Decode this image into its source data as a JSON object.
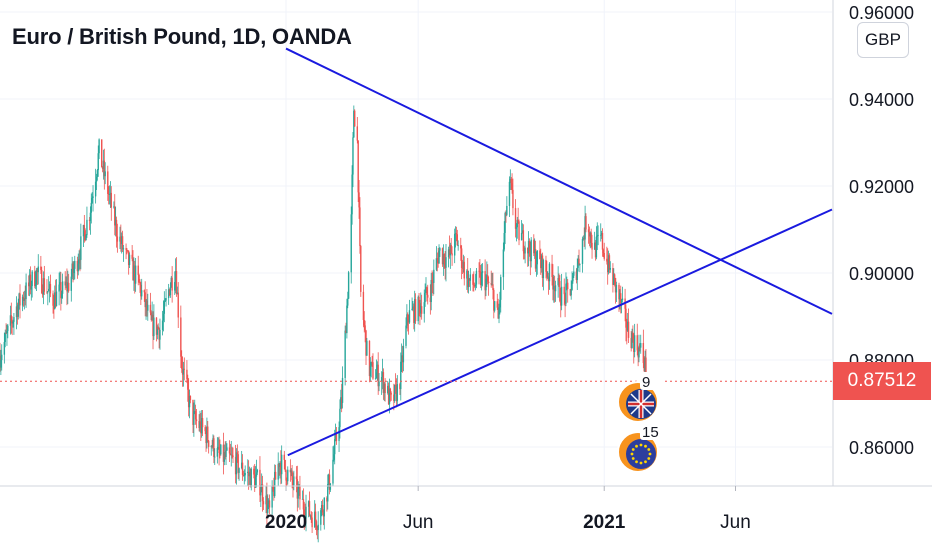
{
  "chart_data": {
    "type": "candlestick",
    "title": "Euro / British Pound, 1D, OANDA",
    "currency": "GBP",
    "y_range": [
      0.85,
      0.96
    ],
    "y_ticks": [
      "0.96000",
      "0.94000",
      "0.92000",
      "0.90000",
      "0.88000",
      "0.86000"
    ],
    "y_tick_values": [
      0.96,
      0.94,
      0.92,
      0.9,
      0.88,
      0.86
    ],
    "x_range": [
      "2019-02-06",
      "2021-09-20"
    ],
    "x_ticks": [
      {
        "label": "2020",
        "date": "2020-01-01",
        "bold": true
      },
      {
        "label": "Jun",
        "date": "2020-06-01",
        "bold": false
      },
      {
        "label": "2021",
        "date": "2021-01-01",
        "bold": true
      },
      {
        "label": "Jun",
        "date": "2021-06-01",
        "bold": false
      }
    ],
    "last_price": 0.87512,
    "last_price_label": "0.87512",
    "up_color": "#26a69a",
    "down_color": "#ef5350",
    "trendline_color": "#1a1adf",
    "trendlines": [
      {
        "name": "upper-resistance",
        "start": [
          "2020-01-01",
          0.9516
        ],
        "end": [
          "2021-09-20",
          0.8906
        ]
      },
      {
        "name": "lower-support",
        "start": [
          "2020-01-03",
          0.8581
        ],
        "end": [
          "2021-09-20",
          0.9146
        ]
      }
    ],
    "price_path": [
      [
        "2019-02-06",
        0.881
      ],
      [
        "2019-02-25",
        0.892
      ],
      [
        "2019-03-20",
        0.9
      ],
      [
        "2019-04-08",
        0.894
      ],
      [
        "2019-04-25",
        0.897
      ],
      [
        "2019-05-06",
        0.903
      ],
      [
        "2019-05-20",
        0.914
      ],
      [
        "2019-05-31",
        0.928
      ],
      [
        "2019-06-10",
        0.919
      ],
      [
        "2019-06-20",
        0.91
      ],
      [
        "2019-06-30",
        0.904
      ],
      [
        "2019-07-15",
        0.898
      ],
      [
        "2019-07-30",
        0.888
      ],
      [
        "2019-08-10",
        0.887
      ],
      [
        "2019-08-20",
        0.897
      ],
      [
        "2019-08-27",
        0.901
      ],
      [
        "2019-09-03",
        0.879
      ],
      [
        "2019-09-15",
        0.867
      ],
      [
        "2019-10-01",
        0.863
      ],
      [
        "2019-10-15",
        0.858
      ],
      [
        "2019-11-01",
        0.857
      ],
      [
        "2019-11-15",
        0.854
      ],
      [
        "2019-12-01",
        0.852
      ],
      [
        "2019-12-13",
        0.845
      ],
      [
        "2019-12-24",
        0.857
      ],
      [
        "2020-01-06",
        0.853
      ],
      [
        "2020-01-20",
        0.847
      ],
      [
        "2020-02-05",
        0.843
      ],
      [
        "2020-02-12",
        0.846
      ],
      [
        "2020-02-20",
        0.852
      ],
      [
        "2020-02-28",
        0.862
      ],
      [
        "2020-03-05",
        0.871
      ],
      [
        "2020-03-12",
        0.896
      ],
      [
        "2020-03-16",
        0.912
      ],
      [
        "2020-03-19",
        0.938
      ],
      [
        "2020-03-23",
        0.93
      ],
      [
        "2020-03-27",
        0.895
      ],
      [
        "2020-04-05",
        0.878
      ],
      [
        "2020-04-20",
        0.876
      ],
      [
        "2020-05-01",
        0.87
      ],
      [
        "2020-05-10",
        0.874
      ],
      [
        "2020-05-20",
        0.89
      ],
      [
        "2020-06-01",
        0.892
      ],
      [
        "2020-06-15",
        0.896
      ],
      [
        "2020-06-25",
        0.905
      ],
      [
        "2020-07-05",
        0.903
      ],
      [
        "2020-07-15",
        0.908
      ],
      [
        "2020-07-25",
        0.9
      ],
      [
        "2020-08-01",
        0.897
      ],
      [
        "2020-08-15",
        0.899
      ],
      [
        "2020-08-25",
        0.896
      ],
      [
        "2020-09-01",
        0.889
      ],
      [
        "2020-09-10",
        0.914
      ],
      [
        "2020-09-15",
        0.92
      ],
      [
        "2020-09-22",
        0.91
      ],
      [
        "2020-10-05",
        0.906
      ],
      [
        "2020-10-20",
        0.902
      ],
      [
        "2020-11-05",
        0.898
      ],
      [
        "2020-11-15",
        0.894
      ],
      [
        "2020-11-25",
        0.897
      ],
      [
        "2020-12-05",
        0.905
      ],
      [
        "2020-12-12",
        0.913
      ],
      [
        "2020-12-20",
        0.905
      ],
      [
        "2020-12-28",
        0.908
      ],
      [
        "2021-01-05",
        0.902
      ],
      [
        "2021-01-12",
        0.898
      ],
      [
        "2021-01-20",
        0.893
      ],
      [
        "2021-01-28",
        0.887
      ],
      [
        "2021-02-05",
        0.884
      ],
      [
        "2021-02-12",
        0.882
      ],
      [
        "2021-02-19",
        0.877
      ]
    ]
  },
  "markers": [
    {
      "name": "uk-flag-event-icon",
      "count": "9"
    },
    {
      "name": "eu-flag-event-icon",
      "count": "15"
    }
  ]
}
